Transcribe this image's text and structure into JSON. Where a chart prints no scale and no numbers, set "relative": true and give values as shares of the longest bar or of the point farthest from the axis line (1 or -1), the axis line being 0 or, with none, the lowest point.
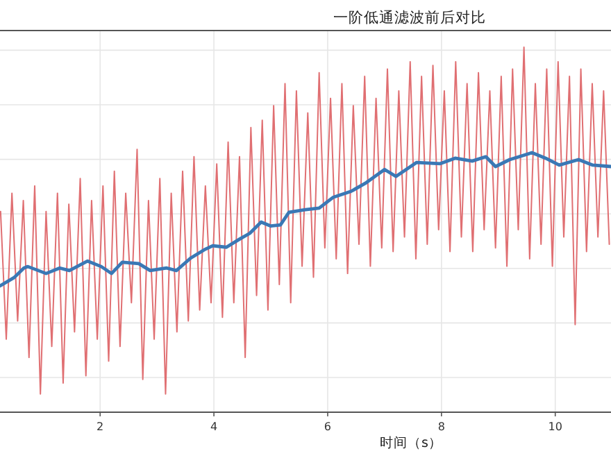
{
  "chart_data": {
    "type": "line",
    "title": "一阶低通滤波前后对比",
    "xlabel": "时间（s）",
    "relative": true,
    "grid": true,
    "xlim": [
      0.24,
      10.98
    ],
    "xticks": [
      2,
      4,
      6,
      8,
      10
    ],
    "series": [
      {
        "color": "#e06f72",
        "x": [
          0.25,
          0.35,
          0.45,
          0.55,
          0.65,
          0.75,
          0.85,
          0.95,
          1.05,
          1.15,
          1.25,
          1.35,
          1.45,
          1.55,
          1.65,
          1.75,
          1.85,
          1.95,
          2.05,
          2.15,
          2.25,
          2.35,
          2.45,
          2.55,
          2.65,
          2.75,
          2.85,
          2.95,
          3.05,
          3.15,
          3.25,
          3.35,
          3.45,
          3.55,
          3.65,
          3.75,
          3.85,
          3.95,
          4.05,
          4.15,
          4.25,
          4.35,
          4.45,
          4.55,
          4.65,
          4.75,
          4.85,
          4.95,
          5.05,
          5.15,
          5.25,
          5.35,
          5.45,
          5.55,
          5.65,
          5.75,
          5.85,
          5.95,
          6.05,
          6.15,
          6.25,
          6.35,
          6.45,
          6.55,
          6.65,
          6.75,
          6.85,
          6.95,
          7.05,
          7.15,
          7.25,
          7.35,
          7.45,
          7.55,
          7.65,
          7.75,
          7.85,
          7.95,
          8.05,
          8.15,
          8.25,
          8.35,
          8.45,
          8.55,
          8.65,
          8.75,
          8.85,
          8.95,
          9.05,
          9.15,
          9.25,
          9.35,
          9.45,
          9.55,
          9.65,
          9.75,
          9.85,
          9.95,
          10.05,
          10.15,
          10.25,
          10.35,
          10.45,
          10.55,
          10.65,
          10.75,
          10.85,
          10.95
        ],
        "values": [
          0.55,
          0.2,
          0.6,
          0.25,
          0.58,
          0.15,
          0.62,
          0.05,
          0.55,
          0.18,
          0.6,
          0.08,
          0.57,
          0.22,
          0.64,
          0.1,
          0.58,
          0.2,
          0.62,
          0.14,
          0.66,
          0.18,
          0.6,
          0.3,
          0.72,
          0.09,
          0.58,
          0.2,
          0.64,
          0.05,
          0.6,
          0.22,
          0.66,
          0.25,
          0.7,
          0.28,
          0.62,
          0.3,
          0.68,
          0.26,
          0.74,
          0.3,
          0.7,
          0.15,
          0.78,
          0.32,
          0.8,
          0.28,
          0.84,
          0.35,
          0.9,
          0.3,
          0.88,
          0.4,
          0.82,
          0.37,
          0.93,
          0.45,
          0.86,
          0.42,
          0.9,
          0.38,
          0.84,
          0.46,
          0.92,
          0.4,
          0.86,
          0.45,
          0.94,
          0.44,
          0.88,
          0.48,
          0.96,
          0.42,
          0.92,
          0.46,
          0.95,
          0.5,
          0.88,
          0.44,
          0.96,
          0.48,
          0.9,
          0.44,
          0.93,
          0.5,
          0.88,
          0.45,
          0.92,
          0.4,
          0.94,
          0.5,
          1.0,
          0.42,
          0.9,
          0.46,
          0.94,
          0.4,
          0.96,
          0.48,
          0.92,
          0.24,
          0.94,
          0.44,
          0.9,
          0.48,
          0.88,
          0.46
        ]
      },
      {
        "color": "#3a78b5",
        "x": [
          0.24,
          0.49,
          0.66,
          0.73,
          1.05,
          1.29,
          1.46,
          1.78,
          2.02,
          2.2,
          2.39,
          2.68,
          2.88,
          3.17,
          3.34,
          3.59,
          3.83,
          3.98,
          4.22,
          4.46,
          4.63,
          4.83,
          5.0,
          5.17,
          5.32,
          5.61,
          5.85,
          6.1,
          6.41,
          6.66,
          7.0,
          7.2,
          7.56,
          7.98,
          8.24,
          8.54,
          8.78,
          8.95,
          9.2,
          9.59,
          9.83,
          10.07,
          10.41,
          10.66,
          10.98
        ],
        "values": [
          0.346,
          0.369,
          0.395,
          0.399,
          0.38,
          0.395,
          0.388,
          0.414,
          0.399,
          0.38,
          0.411,
          0.407,
          0.388,
          0.395,
          0.388,
          0.422,
          0.445,
          0.456,
          0.452,
          0.475,
          0.49,
          0.521,
          0.51,
          0.513,
          0.548,
          0.555,
          0.559,
          0.589,
          0.605,
          0.627,
          0.665,
          0.646,
          0.684,
          0.681,
          0.696,
          0.688,
          0.7,
          0.673,
          0.692,
          0.711,
          0.696,
          0.677,
          0.692,
          0.677,
          0.673
        ]
      }
    ]
  }
}
